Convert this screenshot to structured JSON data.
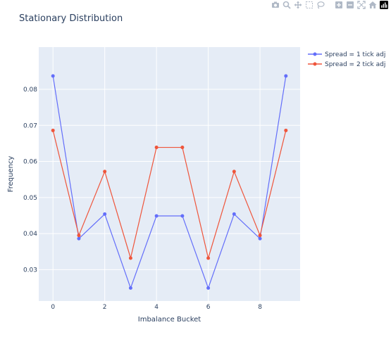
{
  "modebar": {
    "buttons": [
      {
        "name": "camera-icon"
      },
      {
        "name": "zoom-icon"
      },
      {
        "name": "pan-icon"
      },
      {
        "name": "box-select-icon"
      },
      {
        "name": "lasso-icon"
      },
      {
        "name": "zoom-in-icon"
      },
      {
        "name": "zoom-out-icon"
      },
      {
        "name": "autoscale-icon"
      },
      {
        "name": "home-icon"
      },
      {
        "name": "plotly-logo-icon"
      }
    ],
    "icon_color": "#b0b9c6",
    "logo_color": "#000000"
  },
  "chart_data": {
    "type": "line",
    "title": "Stationary Distribution",
    "xlabel": "Imbalance Bucket",
    "ylabel": "Frequency",
    "x": [
      0,
      1,
      2,
      3,
      4,
      5,
      6,
      7,
      8,
      9
    ],
    "xlim": [
      -0.55,
      9.55
    ],
    "ylim": [
      0.0213,
      0.0917
    ],
    "xticks": [
      0,
      2,
      4,
      6,
      8
    ],
    "yticks": [
      0.03,
      0.04,
      0.05,
      0.06,
      0.07,
      0.08
    ],
    "ytick_labels": [
      "0.03",
      "0.04",
      "0.05",
      "0.06",
      "0.07",
      "0.08"
    ],
    "grid": true,
    "plot_background": "#e5ecf6",
    "legend_position": "top-right outside",
    "series": [
      {
        "name": "Spread = 1 tick adj",
        "color": "#636efa",
        "values": [
          0.0837,
          0.0386,
          0.0454,
          0.0249,
          0.0449,
          0.0449,
          0.0249,
          0.0454,
          0.0386,
          0.0837
        ]
      },
      {
        "name": "Spread = 2 tick adj",
        "color": "#ef553b",
        "values": [
          0.0686,
          0.0395,
          0.0572,
          0.0332,
          0.0639,
          0.0639,
          0.0332,
          0.0572,
          0.0395,
          0.0686
        ]
      }
    ]
  }
}
